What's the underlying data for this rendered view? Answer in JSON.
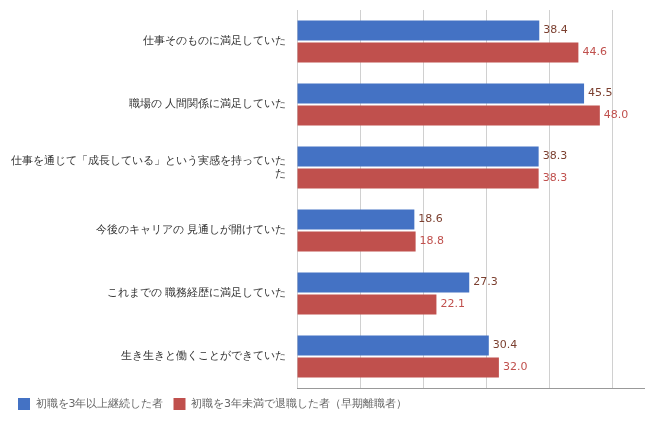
{
  "chart_data": {
    "type": "bar",
    "orientation": "horizontal",
    "categories": [
      "仕事そのものに満足していた",
      "職場の 人間関係に満足していた",
      "仕事を通じて「成長している」という実感を持っていた\nた",
      "今後のキャリアの 見通しが開けていた",
      "これまでの 職務経歴に満足していた",
      "生き生きと働くことができていた"
    ],
    "series": [
      {
        "name": "初職を3年以上継続した者",
        "color": "#4472C4",
        "values": [
          38.4,
          45.5,
          38.3,
          18.6,
          27.3,
          30.4
        ],
        "value_labels": [
          "38.4",
          "45.5",
          "38.3",
          "18.6",
          "27.3",
          "30.4"
        ]
      },
      {
        "name": "初職を3年未満で退職した者（早期離職者）",
        "color": "#C0504D",
        "values": [
          44.6,
          48.0,
          38.3,
          18.8,
          22.1,
          32.0
        ],
        "value_labels": [
          "44.6",
          "48.0",
          "38.3",
          "18.8",
          "22.1",
          "32.0"
        ]
      }
    ],
    "xlim": [
      0,
      55
    ],
    "xticks": [
      0,
      10,
      20,
      30,
      40,
      50
    ],
    "grid": true,
    "legend": "bottom",
    "data_labels": true,
    "tick_labels": "y"
  }
}
